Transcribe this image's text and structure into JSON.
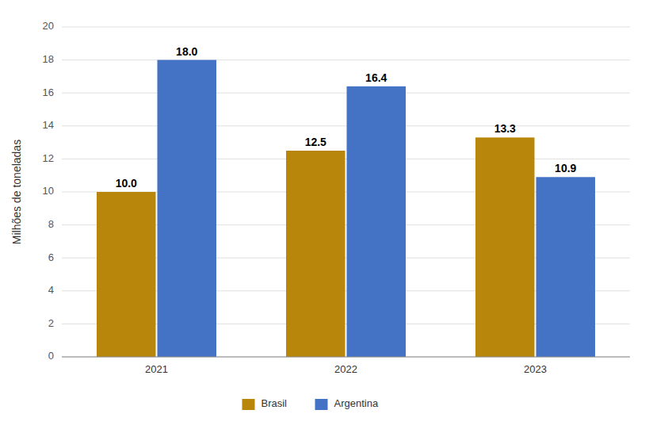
{
  "chart_data": {
    "type": "bar",
    "ylabel": "Milhões de toneladas",
    "categories": [
      "2021",
      "2022",
      "2023"
    ],
    "series": [
      {
        "name": "Brasil",
        "color": "#B8860B",
        "values": [
          10.0,
          12.5,
          13.3
        ],
        "value_labels": [
          "10.0",
          "12.5",
          "13.3"
        ]
      },
      {
        "name": "Argentina",
        "color": "#4472C4",
        "values": [
          18.0,
          16.4,
          10.9
        ],
        "value_labels": [
          "18.0",
          "16.4",
          "10.9"
        ]
      }
    ],
    "ylim": [
      0,
      20
    ],
    "yticks": [
      0,
      2,
      4,
      6,
      8,
      10,
      12,
      14,
      16,
      18,
      20
    ],
    "grid": true,
    "legend": "bottom",
    "data_labels": true
  }
}
